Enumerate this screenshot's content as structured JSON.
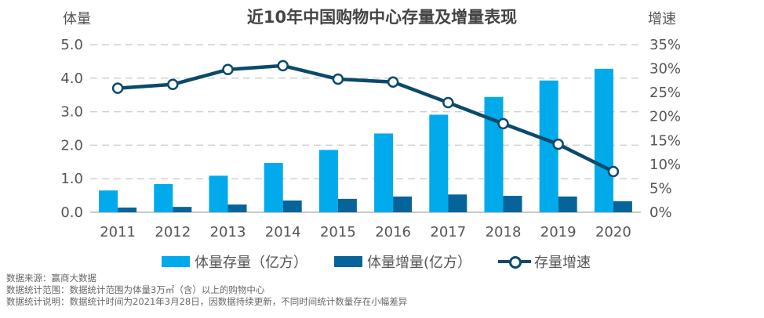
{
  "chart_data": {
    "type": "bar",
    "title": "近10年中国购物中心存量及增量表现",
    "ylabel": "体量",
    "y2label": "增速",
    "categories": [
      "2011",
      "2012",
      "2013",
      "2014",
      "2015",
      "2016",
      "2017",
      "2018",
      "2019",
      "2020"
    ],
    "ylim": [
      0,
      5
    ],
    "yticks": [
      "0.0",
      "1.0",
      "2.0",
      "3.0",
      "4.0",
      "5.0"
    ],
    "y2lim": [
      0,
      35
    ],
    "y2ticks": [
      "0%",
      "5%",
      "10%",
      "15%",
      "20%",
      "25%",
      "30%",
      "35%"
    ],
    "grid": true,
    "legend_position": "bottom",
    "series": [
      {
        "name": "体量存量（亿方）",
        "type": "bar",
        "axis": "left",
        "color": "#00AAEB",
        "values": [
          0.65,
          0.84,
          1.09,
          1.47,
          1.86,
          2.35,
          2.91,
          3.44,
          3.93,
          4.28
        ]
      },
      {
        "name": "体量增量(亿方）",
        "type": "bar",
        "axis": "left",
        "color": "#06649A",
        "values": [
          0.14,
          0.16,
          0.23,
          0.35,
          0.4,
          0.47,
          0.53,
          0.49,
          0.47,
          0.33
        ]
      },
      {
        "name": "存量增速",
        "type": "line",
        "axis": "right",
        "unit": "%",
        "color": "#0B4A6B",
        "values": [
          25.9,
          26.7,
          29.8,
          30.6,
          27.8,
          27.2,
          22.9,
          18.5,
          14.2,
          8.5
        ]
      }
    ]
  },
  "notes": [
    "数据来源：赢商大数据",
    "数据统计范围：数据统计范围为体量3万㎡（含）以上的购物中心",
    "数据统计说明：数据统计时间为2021年3月28日，因数据持续更新，不同时间统计数量存在小幅差异"
  ]
}
